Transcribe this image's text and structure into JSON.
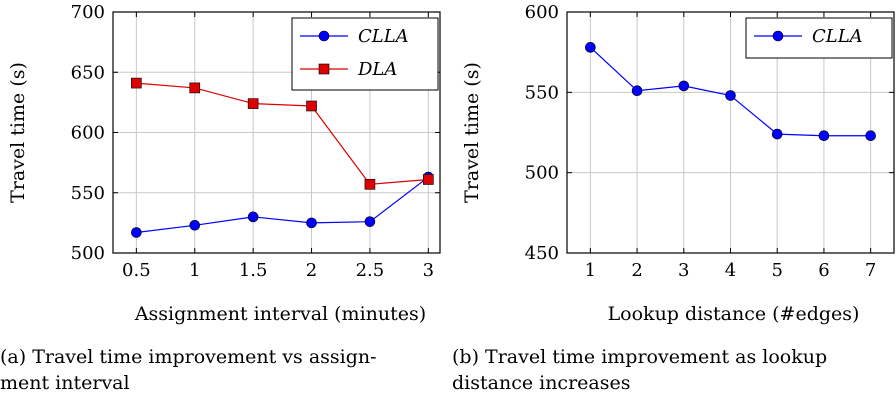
{
  "chart_data": [
    {
      "type": "line",
      "xlabel": "Assignment interval (minutes)",
      "ylabel": "Travel time (s)",
      "x": [
        0.5,
        1,
        1.5,
        2,
        2.5,
        3
      ],
      "xlim": [
        0.3,
        3.1
      ],
      "ylim": [
        500,
        700
      ],
      "xticks": [
        0.5,
        1,
        1.5,
        2,
        2.5,
        3
      ],
      "yticks": [
        500,
        550,
        600,
        650,
        700
      ],
      "grid": true,
      "legend_position": "top-right",
      "series": [
        {
          "name": "CLLA",
          "color": "#0000ff",
          "marker": "circle",
          "values": [
            517,
            523,
            530,
            525,
            526,
            563
          ]
        },
        {
          "name": "DLA",
          "color": "#dd0000",
          "marker": "square",
          "values": [
            641,
            637,
            624,
            622,
            557,
            561
          ]
        }
      ],
      "caption": "(a) Travel time improvement vs assignment interval"
    },
    {
      "type": "line",
      "xlabel": "Lookup distance (#edges)",
      "ylabel": "Travel time (s)",
      "x": [
        1,
        2,
        3,
        4,
        5,
        6,
        7
      ],
      "xlim": [
        0.5,
        7.5
      ],
      "ylim": [
        450,
        600
      ],
      "xticks": [
        1,
        2,
        3,
        4,
        5,
        6,
        7
      ],
      "yticks": [
        450,
        500,
        550,
        600
      ],
      "grid": true,
      "legend_position": "top-right",
      "series": [
        {
          "name": "CLLA",
          "color": "#0000ff",
          "marker": "circle",
          "values": [
            578,
            551,
            554,
            548,
            524,
            523,
            523
          ]
        }
      ],
      "caption": "(b) Travel time improvement as lookup distance increases"
    }
  ],
  "captions": {
    "a_line1": "(a) Travel time improvement vs assign-",
    "a_line2": "ment interval",
    "b_line1": "(b) Travel time improvement as lookup",
    "b_line2": "distance increases"
  }
}
